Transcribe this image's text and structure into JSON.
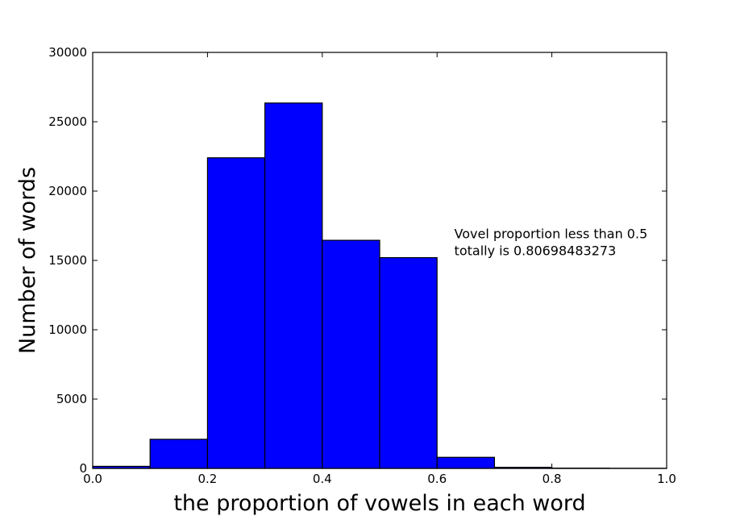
{
  "chart_data": {
    "type": "bar",
    "bins": [
      {
        "x0": 0.0,
        "x1": 0.1,
        "value": 150
      },
      {
        "x0": 0.1,
        "x1": 0.2,
        "value": 2100
      },
      {
        "x0": 0.2,
        "x1": 0.3,
        "value": 22400
      },
      {
        "x0": 0.3,
        "x1": 0.4,
        "value": 26350
      },
      {
        "x0": 0.4,
        "x1": 0.5,
        "value": 16450
      },
      {
        "x0": 0.5,
        "x1": 0.6,
        "value": 15200
      },
      {
        "x0": 0.6,
        "x1": 0.7,
        "value": 800
      },
      {
        "x0": 0.7,
        "x1": 0.8,
        "value": 80
      },
      {
        "x0": 0.8,
        "x1": 0.9,
        "value": 20
      },
      {
        "x0": 0.9,
        "x1": 1.0,
        "value": 10
      }
    ],
    "xlabel": "the proportion of vowels in each word",
    "ylabel": "Number of words",
    "xlim": [
      0.0,
      1.0
    ],
    "ylim": [
      0,
      30000
    ],
    "xticks": [
      "0.0",
      "0.2",
      "0.4",
      "0.6",
      "0.8",
      "1.0"
    ],
    "yticks": [
      "0",
      "5000",
      "10000",
      "15000",
      "20000",
      "25000",
      "30000"
    ],
    "grid": false,
    "bar_color": "#0000ff",
    "annotation": {
      "lines": [
        "Vovel proportion less than 0.5",
        "totally is 0.80698483273"
      ],
      "x": 0.63,
      "y": 16300
    }
  }
}
